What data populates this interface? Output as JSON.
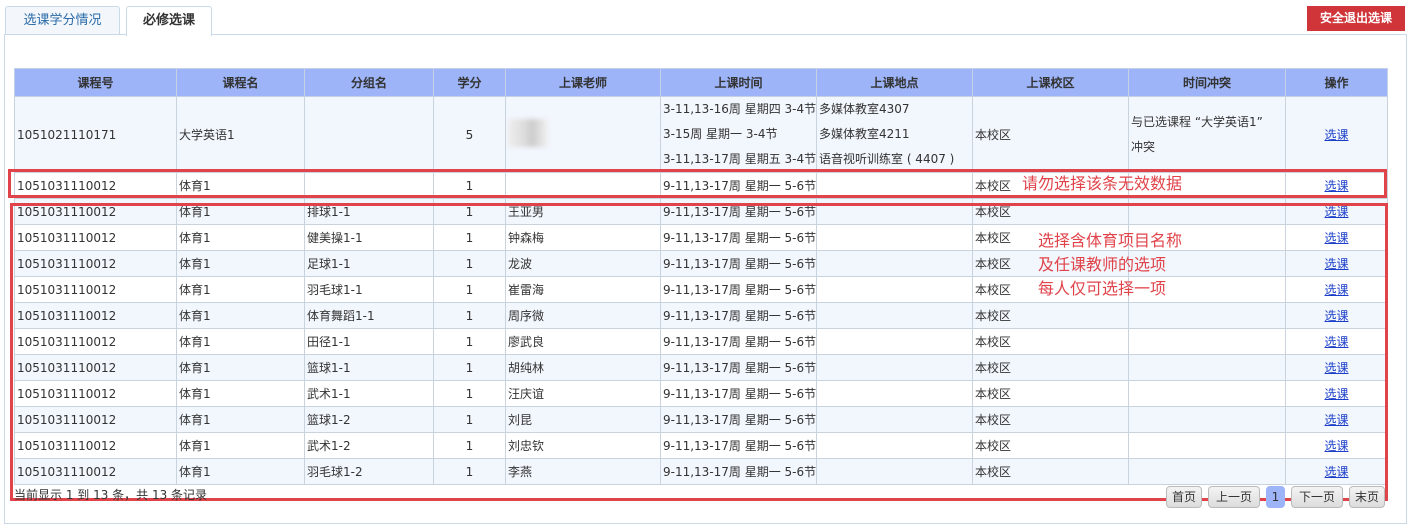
{
  "tabs": [
    {
      "label": "选课学分情况"
    },
    {
      "label": "必修选课"
    }
  ],
  "exit_button": "安全退出选课",
  "columns": [
    "课程号",
    "课程名",
    "分组名",
    "学分",
    "上课老师",
    "上课时间",
    "上课地点",
    "上课校区",
    "时间冲突",
    "操作"
  ],
  "first_row": {
    "code": "1051021110171",
    "name": "大学英语1",
    "group": "",
    "credit": "5",
    "teacher": "(blurred)",
    "times": [
      "3-11,13-16周 星期四 3-4节",
      "3-15周 星期一 3-4节",
      "3-11,13-17周 星期五 3-4节"
    ],
    "places": [
      "多媒体教室4307",
      "多媒体教室4211",
      "语音视听训练室 ( 4407 )"
    ],
    "campus": "本校区",
    "conflict": [
      "与已选课程 “大学英语1”",
      "冲突"
    ],
    "action": "选课"
  },
  "rows": [
    {
      "code": "1051031110012",
      "name": "体育1",
      "group": "",
      "credit": "1",
      "teacher": "",
      "time": "9-11,13-17周 星期一 5-6节",
      "place": "",
      "campus": "本校区",
      "action": "选课"
    },
    {
      "code": "1051031110012",
      "name": "体育1",
      "group": "排球1-1",
      "credit": "1",
      "teacher": "王亚男",
      "time": "9-11,13-17周 星期一 5-6节",
      "place": "",
      "campus": "本校区",
      "action": "选课"
    },
    {
      "code": "1051031110012",
      "name": "体育1",
      "group": "健美操1-1",
      "credit": "1",
      "teacher": "钟森梅",
      "time": "9-11,13-17周 星期一 5-6节",
      "place": "",
      "campus": "本校区",
      "action": "选课"
    },
    {
      "code": "1051031110012",
      "name": "体育1",
      "group": "足球1-1",
      "credit": "1",
      "teacher": "龙波",
      "time": "9-11,13-17周 星期一 5-6节",
      "place": "",
      "campus": "本校区",
      "action": "选课"
    },
    {
      "code": "1051031110012",
      "name": "体育1",
      "group": "羽毛球1-1",
      "credit": "1",
      "teacher": "崔雷海",
      "time": "9-11,13-17周 星期一 5-6节",
      "place": "",
      "campus": "本校区",
      "action": "选课"
    },
    {
      "code": "1051031110012",
      "name": "体育1",
      "group": "体育舞蹈1-1",
      "credit": "1",
      "teacher": "周序微",
      "time": "9-11,13-17周 星期一 5-6节",
      "place": "",
      "campus": "本校区",
      "action": "选课"
    },
    {
      "code": "1051031110012",
      "name": "体育1",
      "group": "田径1-1",
      "credit": "1",
      "teacher": "廖武良",
      "time": "9-11,13-17周 星期一 5-6节",
      "place": "",
      "campus": "本校区",
      "action": "选课"
    },
    {
      "code": "1051031110012",
      "name": "体育1",
      "group": "篮球1-1",
      "credit": "1",
      "teacher": "胡纯林",
      "time": "9-11,13-17周 星期一 5-6节",
      "place": "",
      "campus": "本校区",
      "action": "选课"
    },
    {
      "code": "1051031110012",
      "name": "体育1",
      "group": "武术1-1",
      "credit": "1",
      "teacher": "汪庆谊",
      "time": "9-11,13-17周 星期一 5-6节",
      "place": "",
      "campus": "本校区",
      "action": "选课"
    },
    {
      "code": "1051031110012",
      "name": "体育1",
      "group": "篮球1-2",
      "credit": "1",
      "teacher": "刘昆",
      "time": "9-11,13-17周 星期一 5-6节",
      "place": "",
      "campus": "本校区",
      "action": "选课"
    },
    {
      "code": "1051031110012",
      "name": "体育1",
      "group": "武术1-2",
      "credit": "1",
      "teacher": "刘忠钦",
      "time": "9-11,13-17周 星期一 5-6节",
      "place": "",
      "campus": "本校区",
      "action": "选课"
    },
    {
      "code": "1051031110012",
      "name": "体育1",
      "group": "羽毛球1-2",
      "credit": "1",
      "teacher": "李燕",
      "time": "9-11,13-17周 星期一 5-6节",
      "place": "",
      "campus": "本校区",
      "action": "选课"
    }
  ],
  "annotations": {
    "invalid": "请勿选择该条无效数据",
    "hint": [
      "选择含体育项目名称",
      "及任课教师的选项",
      "每人仅可选择一项"
    ]
  },
  "footer": "当前显示 1 到 13 条，共 13 条记录",
  "pagination": {
    "first": "首页",
    "prev": "上一页",
    "current": "1",
    "next": "下一页",
    "last": "末页"
  },
  "colors": {
    "header": "#9db4f8",
    "annotation": "#e0434a",
    "exit": "#d0353a",
    "link": "#1a3ec8"
  }
}
